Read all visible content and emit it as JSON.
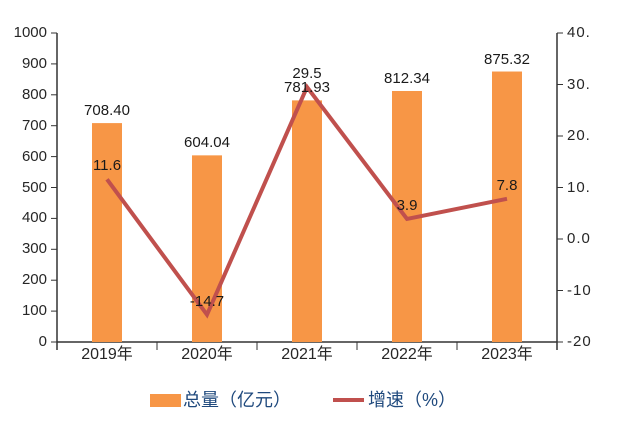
{
  "chart_data": {
    "type": "bar",
    "subtype": "bar-line-combo",
    "title": "",
    "categories": [
      "2019年",
      "2020年",
      "2021年",
      "2022年",
      "2023年"
    ],
    "series": [
      {
        "name": "总量（亿元）",
        "type": "bar",
        "axis": "left",
        "color": "#F79646",
        "values": [
          708.4,
          604.04,
          781.93,
          812.34,
          875.32
        ],
        "labels": [
          "708.40",
          "604.04",
          "781.93",
          "812.34",
          "875.32"
        ]
      },
      {
        "name": "增速（%）",
        "type": "line",
        "axis": "right",
        "color": "#C0504D",
        "values": [
          11.6,
          -14.7,
          29.5,
          3.9,
          7.8
        ],
        "labels": [
          "11.6",
          "-14.7",
          "29.5",
          "3.9",
          "7.8"
        ]
      }
    ],
    "left_axis": {
      "min": 0,
      "max": 1000,
      "step": 100,
      "tick_labels_top_down": [
        "1000",
        "900",
        "800",
        "700",
        "600",
        "500",
        "400",
        "300",
        "200",
        "100",
        "0"
      ]
    },
    "right_axis": {
      "min": -20,
      "max": 40,
      "step": 10,
      "tick_labels_top_down": [
        "40.",
        "30.",
        "20.",
        "10.",
        "0.0",
        "-10",
        "-20"
      ]
    },
    "grid": false,
    "background": "#FFFFFF",
    "axis_color": "#333333",
    "legend": {
      "position": "bottom",
      "items": [
        {
          "label": "总量（亿元）",
          "color": "#F79646",
          "marker": "rect"
        },
        {
          "label": "增速（%）",
          "color": "#C0504D",
          "marker": "line"
        }
      ]
    }
  }
}
